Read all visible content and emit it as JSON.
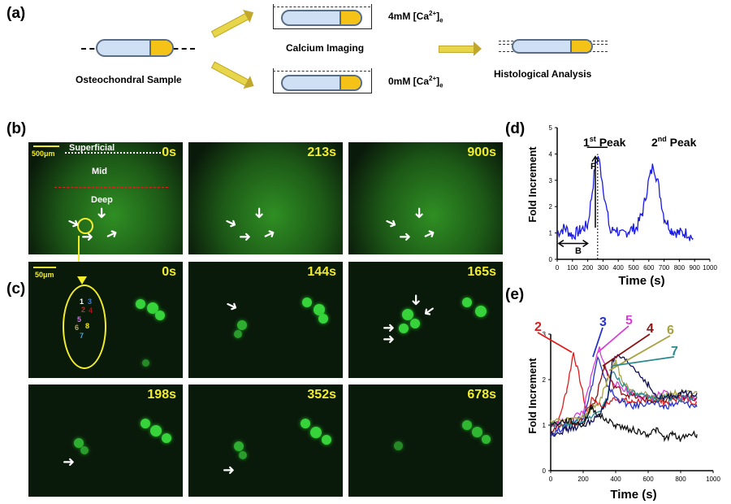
{
  "panel_labels": {
    "a": "(a)",
    "b": "(b)",
    "c": "(c)",
    "d": "(d)",
    "e": "(e)"
  },
  "panel_a": {
    "sample_label": "Osteochondral Sample",
    "imaging_label": "Calcium Imaging",
    "histology_label": "Histological Analysis",
    "cond_high": "4mM [Ca",
    "cond_low": "0mM [Ca",
    "cond_sup": "2+",
    "cond_tail": "]",
    "cond_sub": "e"
  },
  "panel_b": {
    "scale": "500μm",
    "zones": {
      "superficial": "Superficial",
      "mid": "Mid",
      "deep": "Deep"
    },
    "times": [
      "0s",
      "213s",
      "900s"
    ]
  },
  "panel_c": {
    "scale": "50μm",
    "times": [
      "0s",
      "144s",
      "165s",
      "198s",
      "352s",
      "678s"
    ],
    "cell_numbers": [
      "1",
      "2",
      "3",
      "4",
      "5",
      "6",
      "7",
      "8"
    ]
  },
  "colors": {
    "green": "#37d33a",
    "yellow": "#f3ec2a",
    "trace_blue": "#1a1ae6",
    "accent_cap": "#f5c317"
  },
  "chart_data": [
    {
      "type": "line",
      "panel": "d",
      "xlabel": "Time (s)",
      "ylabel": "Fold Increment",
      "xlim": [
        0,
        1000
      ],
      "ylim": [
        0,
        5
      ],
      "xticks": [
        0,
        100,
        200,
        300,
        400,
        500,
        600,
        700,
        800,
        900,
        1000
      ],
      "yticks": [
        0,
        1,
        2,
        3,
        4,
        5
      ],
      "annotations": {
        "peak1": "1",
        "peak1_sup": "st",
        "peak1_tail": " Peak",
        "peak2": "2",
        "peak2_sup": "nd",
        "peak2_tail": " Peak",
        "F": "F",
        "B": "B"
      },
      "series": [
        {
          "x": [
            0,
            50,
            100,
            150,
            200,
            230,
            250,
            270,
            290,
            320,
            350,
            380,
            420,
            470,
            520,
            560,
            600,
            630,
            660,
            700,
            750,
            800,
            850,
            890
          ],
          "values": [
            1.0,
            1.2,
            0.9,
            1.1,
            1.3,
            2.6,
            3.6,
            3.9,
            3.2,
            2.0,
            1.0,
            1.2,
            0.9,
            1.1,
            1.2,
            1.8,
            3.0,
            3.6,
            2.9,
            1.6,
            1.1,
            1.0,
            1.0,
            0.8
          ]
        }
      ]
    },
    {
      "type": "line",
      "panel": "e",
      "xlabel": "Time (s)",
      "ylabel": "Fold Increment",
      "xlim": [
        0,
        1000
      ],
      "ylim": [
        0,
        3
      ],
      "xticks": [
        0,
        200,
        400,
        600,
        800,
        1000
      ],
      "yticks": [
        0,
        1,
        2,
        3
      ],
      "series": [
        {
          "name": "2",
          "color": "#e01b1b",
          "x": [
            0,
            50,
            100,
            140,
            180,
            220,
            260,
            320,
            400,
            500,
            600,
            700,
            800,
            900
          ],
          "values": [
            1.0,
            1.1,
            1.8,
            2.6,
            2.0,
            1.3,
            1.6,
            1.4,
            1.6,
            1.5,
            1.6,
            1.5,
            1.6,
            1.5
          ]
        },
        {
          "name": "3",
          "color": "#2633c7",
          "x": [
            0,
            100,
            200,
            250,
            290,
            330,
            400,
            500,
            600,
            700,
            800,
            900
          ],
          "values": [
            0.8,
            1.0,
            1.2,
            1.8,
            2.5,
            2.0,
            1.6,
            1.4,
            1.5,
            1.4,
            1.5,
            1.4
          ]
        },
        {
          "name": "5",
          "color": "#d63fd6",
          "x": [
            0,
            100,
            200,
            260,
            300,
            350,
            400,
            500,
            600,
            700,
            800,
            900
          ],
          "values": [
            1.0,
            1.1,
            1.3,
            2.2,
            2.7,
            2.1,
            1.9,
            1.7,
            1.6,
            1.7,
            1.6,
            1.6
          ]
        },
        {
          "name": "4",
          "color": "#8b1212",
          "x": [
            0,
            100,
            200,
            280,
            330,
            380,
            450,
            550,
            650,
            750,
            850,
            900
          ],
          "values": [
            0.9,
            1.0,
            1.1,
            1.6,
            2.3,
            1.9,
            1.7,
            1.6,
            1.5,
            1.6,
            1.6,
            1.6
          ]
        },
        {
          "name": "6",
          "color": "#a8a23e",
          "x": [
            0,
            100,
            200,
            300,
            350,
            400,
            450,
            550,
            650,
            750,
            850,
            900
          ],
          "values": [
            1.1,
            1.1,
            1.2,
            1.5,
            2.0,
            2.4,
            1.9,
            1.7,
            1.6,
            1.7,
            1.7,
            1.7
          ]
        },
        {
          "name": "7",
          "color": "#2b8a8f",
          "x": [
            0,
            100,
            200,
            300,
            350,
            380,
            420,
            500,
            600,
            700,
            800,
            900
          ],
          "values": [
            1.0,
            1.0,
            1.1,
            1.3,
            1.6,
            2.2,
            2.0,
            1.7,
            1.6,
            1.6,
            1.6,
            1.6
          ]
        },
        {
          "name": "",
          "color": "#101057",
          "x": [
            0,
            100,
            200,
            300,
            350,
            380,
            420,
            500,
            600,
            650,
            700,
            800,
            900
          ],
          "values": [
            0.8,
            0.9,
            1.0,
            1.2,
            1.6,
            2.4,
            2.5,
            2.3,
            1.9,
            1.6,
            1.6,
            1.7,
            1.7
          ]
        },
        {
          "name": "",
          "color": "#111111",
          "x": [
            0,
            100,
            200,
            250,
            300,
            400,
            500,
            600,
            650,
            700,
            750,
            800,
            850,
            900
          ],
          "values": [
            1.0,
            1.1,
            1.0,
            1.4,
            1.2,
            1.0,
            0.9,
            0.8,
            0.9,
            0.7,
            0.8,
            0.7,
            0.8,
            0.8
          ]
        }
      ]
    }
  ]
}
